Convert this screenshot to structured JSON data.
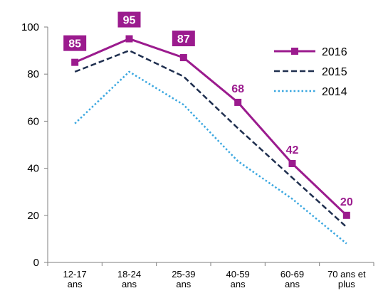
{
  "chart_data": {
    "type": "line",
    "categories": [
      [
        "12-17",
        "ans"
      ],
      [
        "18-24",
        "ans"
      ],
      [
        "25-39",
        "ans"
      ],
      [
        "40-59",
        "ans"
      ],
      [
        "60-69",
        "ans"
      ],
      [
        "70 ans et",
        "plus"
      ]
    ],
    "ylim": [
      0,
      100
    ],
    "yticks": [
      0,
      20,
      40,
      60,
      80,
      100
    ],
    "grid": false,
    "legend_position": "top-right",
    "series": [
      {
        "name": "2016",
        "values": [
          85,
          95,
          87,
          68,
          42,
          20
        ],
        "color": "#9b1b8e",
        "style": "solid",
        "markers": "square",
        "data_labels": [
          "85",
          "95",
          "87",
          "68",
          "42",
          "20"
        ],
        "data_label_style": "boxed-first-three"
      },
      {
        "name": "2015",
        "values": [
          81,
          90,
          79,
          57,
          36,
          15
        ],
        "color": "#1f2f4f",
        "style": "dashed"
      },
      {
        "name": "2014",
        "values": [
          59,
          81,
          67,
          43,
          27,
          8
        ],
        "color": "#3aa7e0",
        "style": "dotted"
      }
    ]
  }
}
